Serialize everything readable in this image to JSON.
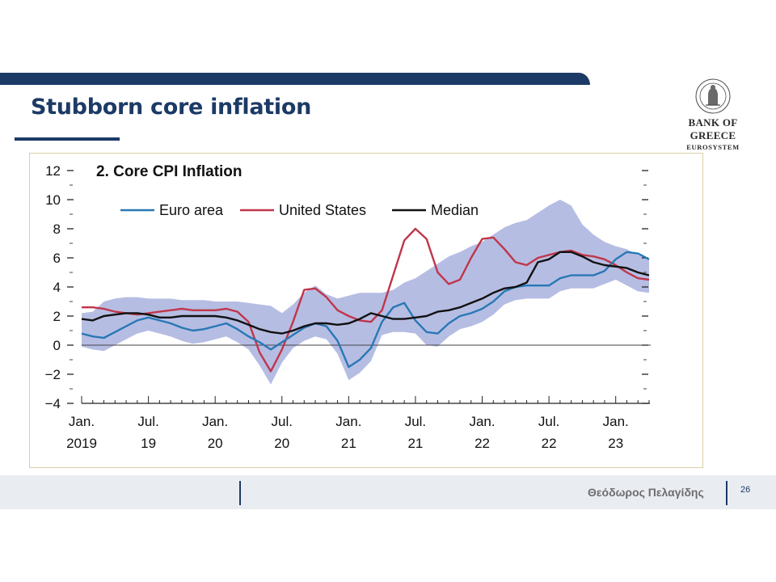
{
  "slide": {
    "title": "Stubborn core inflation",
    "logo": {
      "name": "BANK OF GREECE",
      "subtitle": "EUROSYSTEM"
    },
    "footer": {
      "author": "Θεόδωρος Πελαγίδης",
      "page": "26"
    }
  },
  "colors": {
    "brand": "#1c3a66",
    "euro_area": "#2878b5",
    "united_states": "#c0364a",
    "median": "#111111",
    "band": "#b6bde3"
  },
  "chart_data": {
    "type": "line",
    "title": "2. Core CPI Inflation",
    "ylim": [
      -4,
      12
    ],
    "yticks": [
      {
        "value": 12,
        "label": "12"
      },
      {
        "value": 10,
        "label": "10"
      },
      {
        "value": 8,
        "label": "8"
      },
      {
        "value": 6,
        "label": "6"
      },
      {
        "value": 4,
        "label": "4"
      },
      {
        "value": 2,
        "label": "2"
      },
      {
        "value": 0,
        "label": "0"
      },
      {
        "value": -2,
        "label": "−2"
      },
      {
        "value": -4,
        "label": "−4"
      }
    ],
    "xticks": [
      {
        "index": 0,
        "line1": "Jan.",
        "line2": "2019"
      },
      {
        "index": 6,
        "line1": "Jul.",
        "line2": "19"
      },
      {
        "index": 12,
        "line1": "Jan.",
        "line2": "20"
      },
      {
        "index": 18,
        "line1": "Jul.",
        "line2": "20"
      },
      {
        "index": 24,
        "line1": "Jan.",
        "line2": "21"
      },
      {
        "index": 30,
        "line1": "Jul.",
        "line2": "21"
      },
      {
        "index": 36,
        "line1": "Jan.",
        "line2": "22"
      },
      {
        "index": 42,
        "line1": "Jul.",
        "line2": "22"
      },
      {
        "index": 48,
        "line1": "Jan.",
        "line2": "23"
      }
    ],
    "x_start": "2019-01",
    "frequency": "monthly",
    "legend": {
      "position": "top-left"
    },
    "series": [
      {
        "name": "Euro area",
        "values": [
          0.8,
          0.6,
          0.5,
          0.9,
          1.3,
          1.7,
          1.9,
          1.7,
          1.5,
          1.2,
          1.0,
          1.1,
          1.3,
          1.5,
          1.1,
          0.6,
          0.2,
          -0.3,
          0.2,
          0.7,
          1.2,
          1.5,
          1.3,
          0.3,
          -1.5,
          -1.0,
          -0.2,
          1.6,
          2.6,
          2.9,
          1.7,
          0.9,
          0.8,
          1.5,
          2.0,
          2.2,
          2.5,
          3.0,
          3.7,
          4.0,
          4.1,
          4.1,
          4.1,
          4.6,
          4.8,
          4.8,
          4.8,
          5.1,
          5.9,
          6.4,
          6.3,
          5.9
        ]
      },
      {
        "name": "United States",
        "values": [
          2.6,
          2.6,
          2.5,
          2.3,
          2.2,
          2.1,
          2.2,
          2.3,
          2.4,
          2.5,
          2.4,
          2.4,
          2.4,
          2.5,
          2.3,
          1.6,
          -0.5,
          -1.8,
          -0.3,
          1.6,
          3.8,
          3.9,
          3.3,
          2.4,
          2.0,
          1.7,
          1.6,
          2.4,
          4.8,
          7.2,
          8.0,
          7.3,
          5.0,
          4.2,
          4.5,
          6.0,
          7.3,
          7.4,
          6.6,
          5.7,
          5.5,
          6.0,
          6.2,
          6.4,
          6.5,
          6.2,
          6.1,
          5.9,
          5.5,
          5.0,
          4.6,
          4.5
        ]
      },
      {
        "name": "Median",
        "values": [
          1.8,
          1.7,
          2.0,
          2.1,
          2.2,
          2.2,
          2.1,
          1.9,
          1.9,
          2.0,
          2.0,
          2.0,
          2.0,
          1.9,
          1.7,
          1.4,
          1.1,
          0.9,
          0.8,
          1.0,
          1.3,
          1.5,
          1.5,
          1.4,
          1.5,
          1.8,
          2.2,
          2.0,
          1.8,
          1.8,
          1.9,
          2.0,
          2.3,
          2.4,
          2.6,
          2.9,
          3.2,
          3.6,
          3.9,
          4.0,
          4.3,
          5.7,
          5.9,
          6.4,
          6.4,
          6.1,
          5.7,
          5.5,
          5.4,
          5.3,
          5.0,
          4.8
        ]
      }
    ],
    "band": {
      "upper": [
        2.2,
        2.3,
        3.0,
        3.2,
        3.3,
        3.3,
        3.2,
        3.2,
        3.2,
        3.1,
        3.1,
        3.1,
        3.0,
        3.0,
        3.0,
        2.9,
        2.8,
        2.7,
        2.2,
        2.8,
        3.6,
        4.1,
        3.5,
        3.2,
        3.4,
        3.6,
        3.6,
        3.6,
        3.8,
        4.3,
        4.6,
        5.1,
        5.6,
        6.1,
        6.4,
        6.8,
        7.1,
        7.6,
        8.1,
        8.4,
        8.6,
        9.1,
        9.6,
        10.0,
        9.6,
        8.3,
        7.6,
        7.1,
        6.8,
        6.6,
        6.2,
        5.9
      ]
    }
  }
}
